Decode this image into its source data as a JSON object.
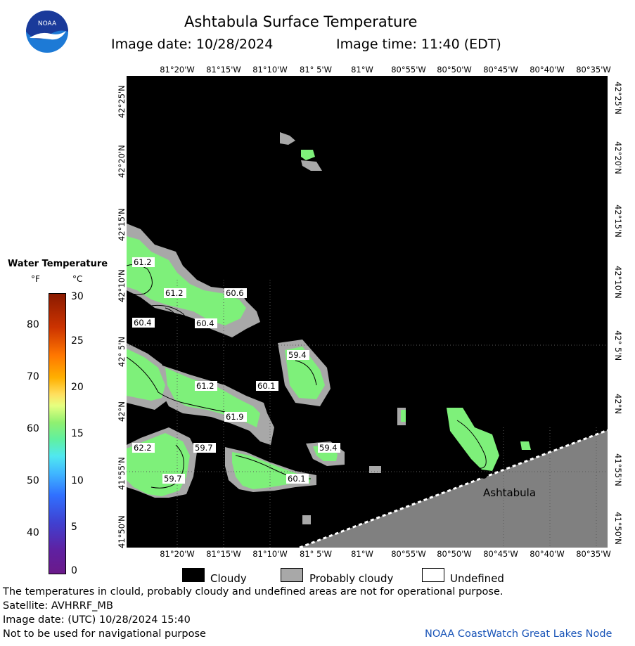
{
  "header": {
    "title": "Ashtabula Surface Temperature",
    "image_date": "Image date: 10/28/2024",
    "image_time": "Image time: 11:40 (EDT)"
  },
  "logo": {
    "text": "NOAA",
    "colors": {
      "top": "#1a3a9a",
      "bottom": "#1d7ad6",
      "bird": "#ffffff"
    }
  },
  "map": {
    "lon_labels_top": [
      "81°20'W",
      "81°15'W",
      "81°10'W",
      "81° 5'W",
      "81°W",
      "80°55'W",
      "80°50'W",
      "80°45'W",
      "80°40'W",
      "80°35'W"
    ],
    "lon_labels_bottom": [
      "81°20'W",
      "81°15'W",
      "81°10'W",
      "81° 5'W",
      "81°W",
      "80°55'W",
      "80°50'W",
      "80°45'W",
      "80°40'W",
      "80°35'W"
    ],
    "lat_labels": [
      "42°25'N",
      "42°20'N",
      "42°15'N",
      "42°10'N",
      "42° 5'N",
      "42°N",
      "41°55'N",
      "41°50'N"
    ],
    "place_label": "Ashtabula",
    "temp_labels": [
      "61.2",
      "61.2",
      "60.6",
      "60.4",
      "60.4",
      "59.4",
      "61.2",
      "60.1",
      "61.9",
      "62.2",
      "59.7",
      "59.4",
      "59.7",
      "60.1"
    ],
    "colors": {
      "cloudy": "#000000",
      "probably_cloudy": "#a8a8a8",
      "land": "#808080",
      "water": "#7ef07a"
    }
  },
  "legend": {
    "title": "Water Temperature",
    "unit_f": "°F",
    "unit_c": "°C",
    "ticks_f": [
      "80",
      "70",
      "60",
      "50",
      "40"
    ],
    "ticks_c": [
      "30",
      "25",
      "20",
      "15",
      "10",
      "5",
      "0"
    ]
  },
  "key": {
    "cloudy": "Cloudy",
    "probably_cloudy": "Probably cloudy",
    "undefined": "Undefined"
  },
  "footer": {
    "line1": "The temperatures in clould, probably cloudy and undefined areas are not for operational purpose.",
    "line2": "Satellite: AVHRRF_MB",
    "line3": "Image date: (UTC) 10/28/2024  15:40",
    "line4": "Not to be used for navigational purpose",
    "credit": "NOAA CoastWatch Great Lakes Node"
  }
}
